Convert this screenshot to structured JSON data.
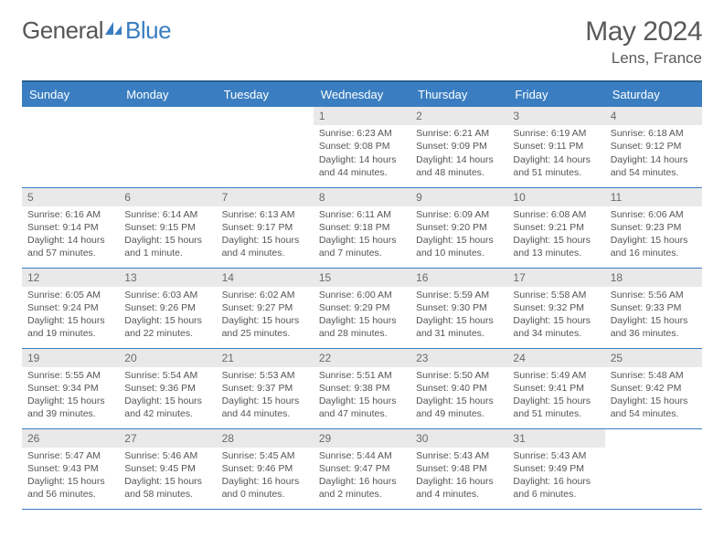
{
  "brand": {
    "part1": "General",
    "part2": "Blue"
  },
  "title": "May 2024",
  "location": "Lens, France",
  "colors": {
    "header_bg": "#3a7ec1",
    "header_border": "#2d5f8f",
    "row_border": "#3a7ec1",
    "daynum_bg": "#e9e9e9",
    "text": "#555555",
    "title_text": "#5a5a5a"
  },
  "weekdays": [
    "Sunday",
    "Monday",
    "Tuesday",
    "Wednesday",
    "Thursday",
    "Friday",
    "Saturday"
  ],
  "weeks": [
    [
      null,
      null,
      null,
      {
        "d": "1",
        "sr": "Sunrise: 6:23 AM",
        "ss": "Sunset: 9:08 PM",
        "dl": "Daylight: 14 hours and 44 minutes."
      },
      {
        "d": "2",
        "sr": "Sunrise: 6:21 AM",
        "ss": "Sunset: 9:09 PM",
        "dl": "Daylight: 14 hours and 48 minutes."
      },
      {
        "d": "3",
        "sr": "Sunrise: 6:19 AM",
        "ss": "Sunset: 9:11 PM",
        "dl": "Daylight: 14 hours and 51 minutes."
      },
      {
        "d": "4",
        "sr": "Sunrise: 6:18 AM",
        "ss": "Sunset: 9:12 PM",
        "dl": "Daylight: 14 hours and 54 minutes."
      }
    ],
    [
      {
        "d": "5",
        "sr": "Sunrise: 6:16 AM",
        "ss": "Sunset: 9:14 PM",
        "dl": "Daylight: 14 hours and 57 minutes."
      },
      {
        "d": "6",
        "sr": "Sunrise: 6:14 AM",
        "ss": "Sunset: 9:15 PM",
        "dl": "Daylight: 15 hours and 1 minute."
      },
      {
        "d": "7",
        "sr": "Sunrise: 6:13 AM",
        "ss": "Sunset: 9:17 PM",
        "dl": "Daylight: 15 hours and 4 minutes."
      },
      {
        "d": "8",
        "sr": "Sunrise: 6:11 AM",
        "ss": "Sunset: 9:18 PM",
        "dl": "Daylight: 15 hours and 7 minutes."
      },
      {
        "d": "9",
        "sr": "Sunrise: 6:09 AM",
        "ss": "Sunset: 9:20 PM",
        "dl": "Daylight: 15 hours and 10 minutes."
      },
      {
        "d": "10",
        "sr": "Sunrise: 6:08 AM",
        "ss": "Sunset: 9:21 PM",
        "dl": "Daylight: 15 hours and 13 minutes."
      },
      {
        "d": "11",
        "sr": "Sunrise: 6:06 AM",
        "ss": "Sunset: 9:23 PM",
        "dl": "Daylight: 15 hours and 16 minutes."
      }
    ],
    [
      {
        "d": "12",
        "sr": "Sunrise: 6:05 AM",
        "ss": "Sunset: 9:24 PM",
        "dl": "Daylight: 15 hours and 19 minutes."
      },
      {
        "d": "13",
        "sr": "Sunrise: 6:03 AM",
        "ss": "Sunset: 9:26 PM",
        "dl": "Daylight: 15 hours and 22 minutes."
      },
      {
        "d": "14",
        "sr": "Sunrise: 6:02 AM",
        "ss": "Sunset: 9:27 PM",
        "dl": "Daylight: 15 hours and 25 minutes."
      },
      {
        "d": "15",
        "sr": "Sunrise: 6:00 AM",
        "ss": "Sunset: 9:29 PM",
        "dl": "Daylight: 15 hours and 28 minutes."
      },
      {
        "d": "16",
        "sr": "Sunrise: 5:59 AM",
        "ss": "Sunset: 9:30 PM",
        "dl": "Daylight: 15 hours and 31 minutes."
      },
      {
        "d": "17",
        "sr": "Sunrise: 5:58 AM",
        "ss": "Sunset: 9:32 PM",
        "dl": "Daylight: 15 hours and 34 minutes."
      },
      {
        "d": "18",
        "sr": "Sunrise: 5:56 AM",
        "ss": "Sunset: 9:33 PM",
        "dl": "Daylight: 15 hours and 36 minutes."
      }
    ],
    [
      {
        "d": "19",
        "sr": "Sunrise: 5:55 AM",
        "ss": "Sunset: 9:34 PM",
        "dl": "Daylight: 15 hours and 39 minutes."
      },
      {
        "d": "20",
        "sr": "Sunrise: 5:54 AM",
        "ss": "Sunset: 9:36 PM",
        "dl": "Daylight: 15 hours and 42 minutes."
      },
      {
        "d": "21",
        "sr": "Sunrise: 5:53 AM",
        "ss": "Sunset: 9:37 PM",
        "dl": "Daylight: 15 hours and 44 minutes."
      },
      {
        "d": "22",
        "sr": "Sunrise: 5:51 AM",
        "ss": "Sunset: 9:38 PM",
        "dl": "Daylight: 15 hours and 47 minutes."
      },
      {
        "d": "23",
        "sr": "Sunrise: 5:50 AM",
        "ss": "Sunset: 9:40 PM",
        "dl": "Daylight: 15 hours and 49 minutes."
      },
      {
        "d": "24",
        "sr": "Sunrise: 5:49 AM",
        "ss": "Sunset: 9:41 PM",
        "dl": "Daylight: 15 hours and 51 minutes."
      },
      {
        "d": "25",
        "sr": "Sunrise: 5:48 AM",
        "ss": "Sunset: 9:42 PM",
        "dl": "Daylight: 15 hours and 54 minutes."
      }
    ],
    [
      {
        "d": "26",
        "sr": "Sunrise: 5:47 AM",
        "ss": "Sunset: 9:43 PM",
        "dl": "Daylight: 15 hours and 56 minutes."
      },
      {
        "d": "27",
        "sr": "Sunrise: 5:46 AM",
        "ss": "Sunset: 9:45 PM",
        "dl": "Daylight: 15 hours and 58 minutes."
      },
      {
        "d": "28",
        "sr": "Sunrise: 5:45 AM",
        "ss": "Sunset: 9:46 PM",
        "dl": "Daylight: 16 hours and 0 minutes."
      },
      {
        "d": "29",
        "sr": "Sunrise: 5:44 AM",
        "ss": "Sunset: 9:47 PM",
        "dl": "Daylight: 16 hours and 2 minutes."
      },
      {
        "d": "30",
        "sr": "Sunrise: 5:43 AM",
        "ss": "Sunset: 9:48 PM",
        "dl": "Daylight: 16 hours and 4 minutes."
      },
      {
        "d": "31",
        "sr": "Sunrise: 5:43 AM",
        "ss": "Sunset: 9:49 PM",
        "dl": "Daylight: 16 hours and 6 minutes."
      },
      null
    ]
  ]
}
